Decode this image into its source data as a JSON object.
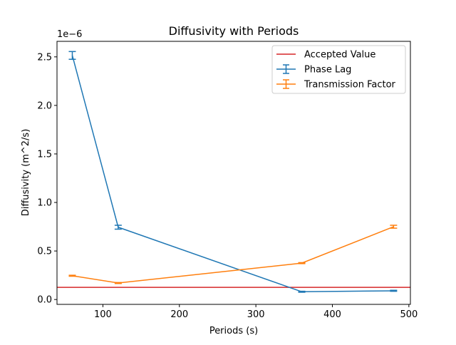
{
  "chart_data": {
    "type": "line",
    "title": "Diffusivity with Periods",
    "xlabel": "Periods (s)",
    "ylabel": "Diffusivity (m^2/s)",
    "y_offset_label": "1e−6",
    "xlim": [
      40,
      502
    ],
    "ylim": [
      -0.05,
      2.66
    ],
    "x_ticks": [
      100,
      200,
      300,
      400,
      500
    ],
    "x_tick_labels": [
      "100",
      "200",
      "300",
      "400",
      "500"
    ],
    "y_ticks": [
      0.0,
      0.5,
      1.0,
      1.5,
      2.0,
      2.5
    ],
    "y_tick_labels": [
      "0.0",
      "0.5",
      "1.0",
      "1.5",
      "2.0",
      "2.5"
    ],
    "grid": false,
    "legend_position": "upper right",
    "hline": {
      "name": "Accepted Value",
      "y": 0.125,
      "color": "#d62728"
    },
    "series": [
      {
        "name": "Phase Lag",
        "color": "#1f77b4",
        "x": [
          60,
          120,
          360,
          480
        ],
        "y": [
          2.515,
          0.745,
          0.08,
          0.09
        ],
        "yerr": [
          0.04,
          0.02,
          0.005,
          0.005
        ]
      },
      {
        "name": "Transmission Factor",
        "color": "#ff7f0e",
        "x": [
          60,
          120,
          360,
          480
        ],
        "y": [
          0.245,
          0.17,
          0.375,
          0.75
        ],
        "yerr": [
          0.005,
          0.005,
          0.005,
          0.015
        ]
      }
    ]
  }
}
